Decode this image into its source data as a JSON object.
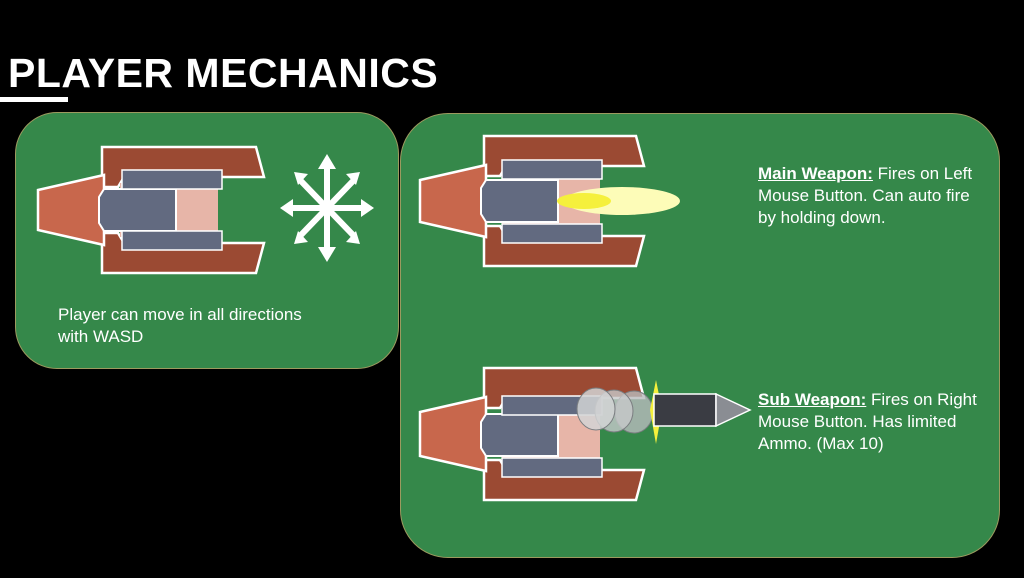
{
  "slide": {
    "title": "PLAYER MECHANICS"
  },
  "movement": {
    "description": "Player can move in all directions with WASD",
    "icon": "eight-direction-arrows-icon"
  },
  "main_weapon": {
    "label": "Main Weapon:",
    "description": " Fires on Left Mouse Button. Can auto fire by holding down."
  },
  "sub_weapon": {
    "label": "Sub Weapon:",
    "description": " Fires on Right Mouse Button. Has limited Ammo. (Max 10)"
  },
  "colors": {
    "background": "#000000",
    "panel_green": "#35884a",
    "panel_border": "#9c9a5f",
    "ship_wing": "#9b4a33",
    "ship_nose": "#c8674c",
    "ship_body": "#626a80",
    "ship_glow": "#e7b5a8",
    "bullet_yellow": "#f5f03c",
    "missile": "#3a3c43"
  }
}
